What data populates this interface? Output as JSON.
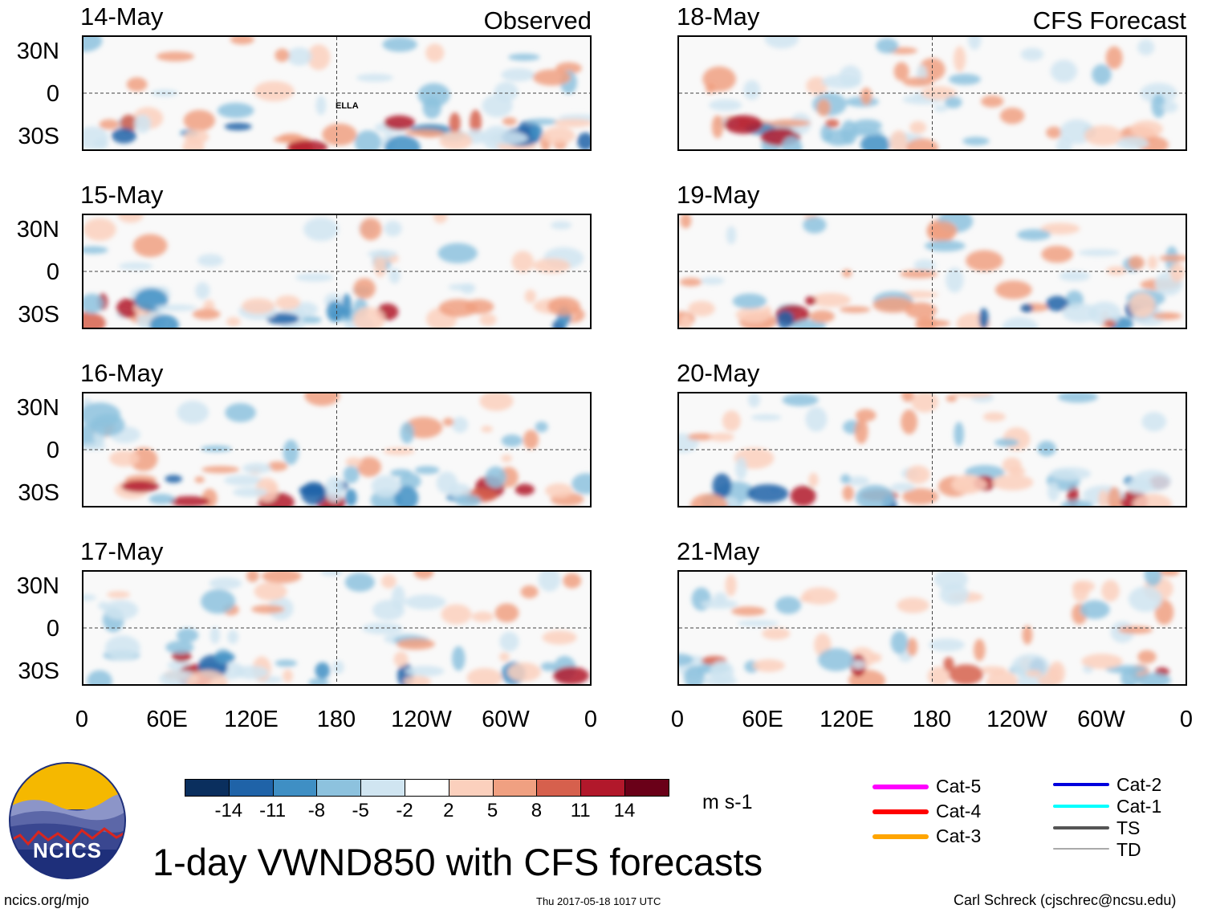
{
  "chart_data": {
    "type": "heatmap",
    "title": "1-day VWND850 with CFS forecasts",
    "variable": "850-hPa meridional wind anomaly",
    "units": "m s-1",
    "y_ticks": [
      "30N",
      "0",
      "30S"
    ],
    "x_ticks": [
      "0",
      "60E",
      "120E",
      "180",
      "120W",
      "60W",
      "0"
    ],
    "colorbar": {
      "labels": [
        "-14",
        "-11",
        "-8",
        "-5",
        "-2",
        "2",
        "5",
        "8",
        "11",
        "14"
      ],
      "colors": [
        "#0a2f5e",
        "#1f63a8",
        "#3f8fc4",
        "#8dc2de",
        "#d0e5f1",
        "#ffffff",
        "#fbd0bd",
        "#f0a081",
        "#d6604d",
        "#b2182b",
        "#6a0018"
      ]
    },
    "observed": {
      "tag": "Observed",
      "panels": [
        {
          "date": "14-May",
          "storm_label": "ELLA"
        },
        {
          "date": "15-May"
        },
        {
          "date": "16-May"
        },
        {
          "date": "17-May"
        }
      ]
    },
    "forecast": {
      "tag": "CFS Forecast",
      "panels": [
        {
          "date": "18-May"
        },
        {
          "date": "19-May"
        },
        {
          "date": "20-May"
        },
        {
          "date": "21-May"
        }
      ]
    },
    "legend": {
      "left": [
        {
          "label": "Cat-5",
          "color": "#ff00ff"
        },
        {
          "label": "Cat-4",
          "color": "#ff0000"
        },
        {
          "label": "Cat-3",
          "color": "#ffa500"
        }
      ],
      "right": [
        {
          "label": "Cat-2",
          "color": "#0000dd"
        },
        {
          "label": "Cat-1",
          "color": "#00ffff"
        },
        {
          "label": "TS",
          "color": "#555555"
        },
        {
          "label": "TD",
          "color": "#aaaaaa"
        }
      ]
    }
  },
  "logo": {
    "text": "NCICS"
  },
  "footer": {
    "url": "ncics.org/mjo",
    "timestamp": "Thu 2017-05-18 1017 UTC",
    "author": "Carl Schreck (cjschrec@ncsu.edu)"
  }
}
